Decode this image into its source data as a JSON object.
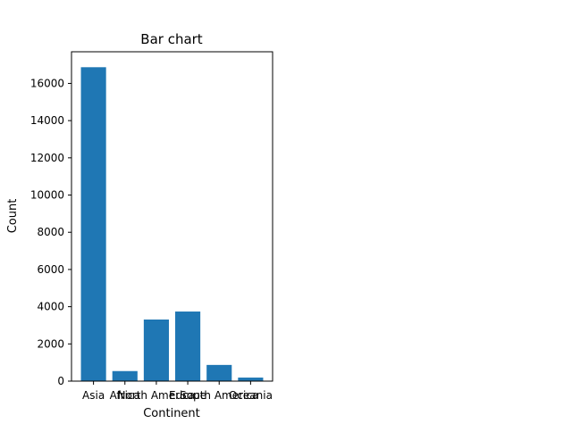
{
  "chart_data": {
    "type": "bar",
    "title": "Bar chart",
    "xlabel": "Continent",
    "ylabel": "Count",
    "categories": [
      "Asia",
      "Africa",
      "North America",
      "Europe",
      "South America",
      "Oceania"
    ],
    "values": [
      16870,
      540,
      3310,
      3740,
      870,
      190
    ],
    "ylim": [
      0,
      17700
    ],
    "yticks": [
      0,
      2000,
      4000,
      6000,
      8000,
      10000,
      12000,
      14000,
      16000
    ],
    "bar_color": "#1f77b4",
    "grid": false,
    "legend": "none"
  }
}
